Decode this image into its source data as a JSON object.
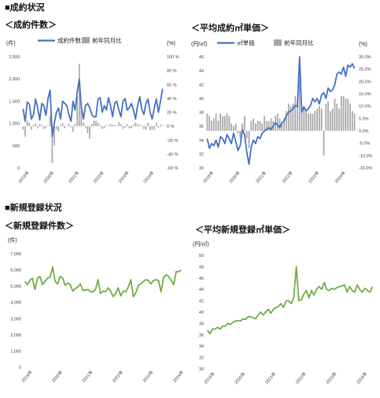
{
  "sections": {
    "section1_title": "■成約状況",
    "section2_title": "■新規登録状況"
  },
  "chart_data": [
    {
      "id": "c1",
      "type": "bar",
      "title": "＜成約件数＞",
      "left_unit": "(件)",
      "right_unit": "(%)",
      "legend_line": "成約件数",
      "legend_bar": "前年同月比",
      "y_left": {
        "min": 0,
        "max": 2500,
        "ticks": [
          0,
          500,
          1000,
          1500,
          2000,
          2500
        ],
        "tick_labels": [
          "0",
          "500",
          "1,000",
          "1,500",
          "2,000",
          "2,500"
        ]
      },
      "y_right": {
        "min": -60,
        "max": 100,
        "ticks": [
          -60,
          -40,
          -20,
          0,
          20,
          40,
          60,
          80,
          100
        ],
        "tick_labels": [
          "-60 %",
          "-40 %",
          "-20 %",
          "0 %",
          "20 %",
          "40 %",
          "60 %",
          "80 %",
          "100 %"
        ]
      },
      "x_labels": [
        "2019年",
        "2020年",
        "2021年",
        "2022年",
        "2023年",
        "2024年"
      ],
      "x_label_index": [
        3,
        15,
        27,
        39,
        51,
        63
      ],
      "series": [
        {
          "name": "成約件数",
          "kind": "line",
          "color": "#4472c4",
          "values": [
            1330,
            1050,
            1480,
            1430,
            1100,
            1200,
            1550,
            1350,
            1080,
            1450,
            1400,
            1180,
            1560,
            1750,
            700,
            1000,
            1250,
            1350,
            1100,
            1500,
            1450,
            1400,
            1200,
            1050,
            1500,
            1300,
            1700,
            2000,
            1350,
            1100,
            1400,
            1450,
            1350,
            1200,
            1150,
            1150,
            1550,
            1580,
            1250,
            1400,
            1300,
            1580,
            1400,
            1150,
            1450,
            1500,
            1300,
            1150,
            1500,
            1560,
            1300,
            1350,
            1450,
            1300,
            1100,
            1400,
            1600,
            1320,
            1200,
            1450,
            1550,
            1250,
            1100,
            1350,
            1550,
            1250,
            1500,
            1780
          ]
        },
        {
          "name": "前年同月比",
          "kind": "bar",
          "color": "#a6a6a6",
          "values": [
            -5,
            -15,
            8,
            5,
            -5,
            2,
            4,
            -3,
            3,
            2,
            -4,
            -3,
            1,
            15,
            -53,
            -28,
            -5,
            -8,
            2,
            4,
            -3,
            1,
            3,
            -2,
            -8,
            3,
            43,
            90,
            30,
            5,
            -3,
            -10,
            -18,
            3,
            8,
            8,
            5,
            2,
            -4,
            -3,
            1,
            1,
            3,
            2,
            2,
            1,
            6,
            3,
            -4,
            -2,
            3,
            -3,
            -3,
            2,
            5,
            3,
            2,
            1,
            -4,
            -5,
            5,
            -6,
            -5,
            -5,
            5,
            -2,
            2,
            1
          ]
        }
      ]
    },
    {
      "id": "c2",
      "type": "bar",
      "title": "＜平均成約㎡単価＞",
      "left_unit": "(円/㎡)",
      "right_unit": "(%)",
      "legend_line": "㎡単価",
      "legend_bar": "前年同月比",
      "y_left": {
        "min": 30,
        "max": 46,
        "ticks": [
          30,
          32,
          34,
          36,
          38,
          40,
          42,
          44,
          46
        ],
        "tick_labels": [
          "30",
          "32",
          "34",
          "36",
          "38",
          "40",
          "42",
          "44",
          "46"
        ]
      },
      "y_right": {
        "min": -15,
        "max": 30,
        "ticks": [
          -15,
          -10,
          -5,
          0,
          5,
          10,
          15,
          20,
          25,
          30
        ],
        "tick_labels": [
          "-15.0%",
          "-10.0%",
          "-5.0%",
          "0.0%",
          "5.0%",
          "10.0%",
          "15.0%",
          "20.0%",
          "25.0%",
          "30.0%"
        ]
      },
      "x_labels": [
        "2019年",
        "2020年",
        "2021年",
        "2022年",
        "2023年",
        "2024年"
      ],
      "x_label_index": [
        3,
        15,
        27,
        39,
        51,
        63
      ],
      "series": [
        {
          "name": "㎡単価",
          "kind": "line",
          "color": "#4472c4",
          "values": [
            34.2,
            32.8,
            33.5,
            33.2,
            34.0,
            33.0,
            34.5,
            34.2,
            33.5,
            34.8,
            34.2,
            33.5,
            35.0,
            33.8,
            32.5,
            33.2,
            35.5,
            34.8,
            32.3,
            30.5,
            33.0,
            34.0,
            33.5,
            34.5,
            34.2,
            35.0,
            35.3,
            35.5,
            35.8,
            35.5,
            36.0,
            36.5,
            36.2,
            35.8,
            36.5,
            36.8,
            37.5,
            38.0,
            38.2,
            38.5,
            39.0,
            38.8,
            46.0,
            38.0,
            38.8,
            38.2,
            38.5,
            39.0,
            40.0,
            39.5,
            40.0,
            39.2,
            40.5,
            40.8,
            40.0,
            41.5,
            41.0,
            41.2,
            42.0,
            43.5,
            43.8,
            43.5,
            44.5,
            43.2,
            44.8,
            44.5,
            45.0,
            44.3
          ]
        },
        {
          "name": "前年同月比",
          "kind": "bar",
          "color": "#a6a6a6",
          "values": [
            7,
            6,
            4,
            5,
            7,
            4,
            7,
            6,
            6,
            7,
            6,
            3,
            2,
            3,
            -1,
            -3,
            3,
            6,
            -3,
            -7,
            4,
            5,
            3,
            4,
            4,
            3,
            6,
            4,
            4,
            5,
            4,
            6,
            7,
            5,
            3,
            5,
            8,
            11,
            10,
            11,
            14,
            12,
            22,
            10,
            9,
            8,
            7,
            7,
            7,
            8,
            9,
            10,
            9,
            -10,
            11,
            12,
            8,
            9,
            13,
            11,
            9,
            14,
            14,
            13,
            13,
            11,
            8,
            7
          ]
        }
      ]
    },
    {
      "id": "c3",
      "type": "line",
      "title": "＜新規登録件数＞",
      "left_unit": "(件)",
      "y_left": {
        "min": 0,
        "max": 7000,
        "ticks": [
          0,
          1000,
          2000,
          3000,
          4000,
          5000,
          6000,
          7000
        ],
        "tick_labels": [
          "0",
          "1,000",
          "2,000",
          "3,000",
          "4,000",
          "5,000",
          "6,000",
          "7,000"
        ]
      },
      "x_labels": [
        "2019年",
        "2020年",
        "2021年",
        "2022年",
        "2023年",
        "2024年"
      ],
      "x_label_index": [
        3,
        15,
        27,
        39,
        51,
        63
      ],
      "series": [
        {
          "name": "新規登録件数",
          "kind": "line",
          "color": "#70ad47",
          "values": [
            5300,
            5100,
            5350,
            5500,
            4800,
            5500,
            5600,
            5100,
            5300,
            5500,
            5550,
            6200,
            5300,
            5150,
            5600,
            5500,
            5050,
            5200,
            5100,
            4700,
            4850,
            4950,
            5150,
            4750,
            4750,
            4800,
            4650,
            4650,
            4800,
            5400,
            4550,
            4700,
            4650,
            4900,
            4700,
            4350,
            4550,
            4900,
            4400,
            4700,
            4650,
            4950,
            5400,
            4350,
            4600,
            5050,
            5150,
            5300,
            5400,
            5350,
            5150,
            5350,
            5400,
            5350,
            4650,
            5550,
            5700,
            5600,
            5350,
            5100,
            5900,
            5900,
            6000
          ]
        }
      ]
    },
    {
      "id": "c4",
      "type": "line",
      "title": "＜平均新規登録㎡単価＞",
      "left_unit": "(円/㎡)",
      "y_left": {
        "min": 30,
        "max": 50,
        "ticks": [
          30,
          32,
          34,
          36,
          38,
          40,
          42,
          44,
          46,
          48,
          50
        ],
        "tick_labels": [
          "30",
          "32",
          "34",
          "36",
          "38",
          "40",
          "42",
          "44",
          "46",
          "48",
          "50"
        ]
      },
      "x_labels": [
        "2019年",
        "2020年",
        "2021年",
        "2022年",
        "2023年",
        "2024年"
      ],
      "x_label_index": [
        3,
        15,
        27,
        39,
        51,
        63
      ],
      "series": [
        {
          "name": "平均新規登録㎡単価",
          "kind": "line",
          "color": "#70ad47",
          "values": [
            36.8,
            36.2,
            37.0,
            37.0,
            37.3,
            37.0,
            37.5,
            37.5,
            38.0,
            37.8,
            38.2,
            38.4,
            38.5,
            38.4,
            38.8,
            38.7,
            39.2,
            39.2,
            39.0,
            38.8,
            39.5,
            40.0,
            39.5,
            40.0,
            40.5,
            39.8,
            40.5,
            40.8,
            41.0,
            41.5,
            40.8,
            42.0,
            42.0,
            41.5,
            42.5,
            48.0,
            42.0,
            42.2,
            43.2,
            43.8,
            42.5,
            43.8,
            43.0,
            44.0,
            44.5,
            44.0,
            45.2,
            44.0,
            43.8,
            44.2,
            44.0,
            44.3,
            44.5,
            44.6,
            44.8,
            43.5,
            44.5,
            43.8,
            43.5,
            44.8,
            44.0,
            43.5,
            44.2,
            43.8,
            43.5,
            44.5
          ]
        }
      ]
    }
  ]
}
